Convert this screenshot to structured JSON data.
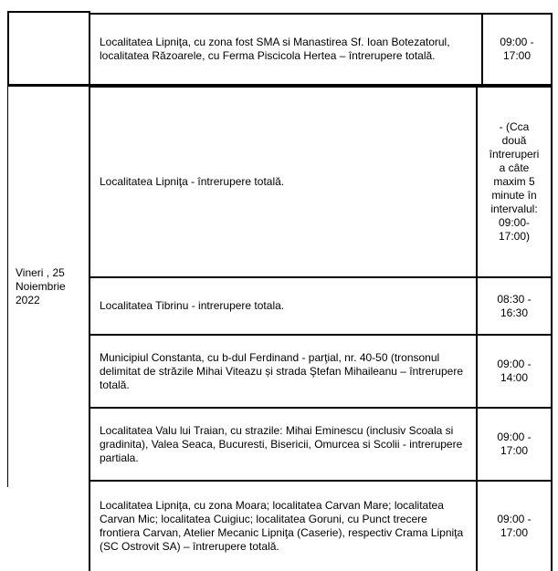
{
  "table": {
    "block1": {
      "date": "",
      "rows": [
        {
          "description": "Localitatea Lipniţa, cu zona fost SMA si Manastirea Sf. Ioan Botezatorul, localitatea Răzoarele, cu Ferma Piscicola Hertea – întrerupere totală.",
          "interval": "09:00 - 17:00"
        }
      ]
    },
    "block2": {
      "date": "Vineri , 25 Noiembrie 2022",
      "rows": [
        {
          "description": "Localitatea Lipniţa - întrerupere totală.",
          "interval": "- (Cca două întreruperi a câte maxim 5 minute în intervalul: 09:00- 17:00)"
        },
        {
          "description": "Localitatea Tibrinu - intrerupere totala.",
          "interval": "08:30 - 16:30"
        },
        {
          "description": "Municipiul Constanta, cu b-dul Ferdinand - parţial, nr. 40-50 (tronsonul delimitat de străzile Mihai Viteazu și strada Ştefan Mihaileanu – întrerupere totală.",
          "interval": "09:00 - 14:00"
        },
        {
          "description": "Localitatea Valu lui Traian, cu strazile: Mihai Eminescu (inclusiv Scoala si gradinita), Valea Seaca, Bucuresti, Bisericii, Omurcea si Scolii - intrerupere partiala.",
          "interval": "09:00 - 17:00"
        },
        {
          "description": "Localitatea Lipniţa, cu zona Moara; localitatea Carvan Mare; localitatea Carvan Mic; localitatea Cuigiuc; localitatea Goruni, cu Punct trecere frontiera Carvan, Atelier Mecanic Lipniţa (Caserie), respectiv Crama Lipniţa (SC Ostrovit SA) – întrerupere totală.",
          "interval": "09:00 - 17:00"
        }
      ]
    }
  }
}
